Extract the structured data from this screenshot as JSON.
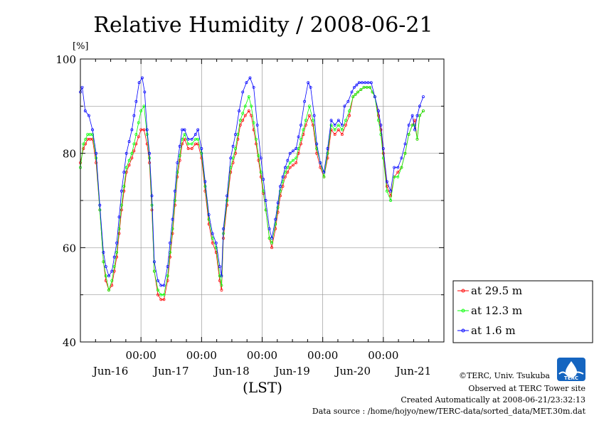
{
  "chart_data": {
    "type": "line",
    "title": "Relative Humidity / 2008-06-21",
    "y_unit": "[%]",
    "xlabel": "(LST)",
    "ylim": [
      40,
      100
    ],
    "y_ticks": [
      40,
      60,
      80,
      100
    ],
    "x_range": [
      0,
      6
    ],
    "x_time_ticks": [
      {
        "x": 1,
        "label": "00:00"
      },
      {
        "x": 2,
        "label": "00:00"
      },
      {
        "x": 3,
        "label": "00:00"
      },
      {
        "x": 4,
        "label": "00:00"
      },
      {
        "x": 5,
        "label": "00:00"
      }
    ],
    "x_day_labels": [
      {
        "x": 0.5,
        "label": "Jun-16"
      },
      {
        "x": 1.5,
        "label": "Jun-17"
      },
      {
        "x": 2.5,
        "label": "Jun-18"
      },
      {
        "x": 3.5,
        "label": "Jun-19"
      },
      {
        "x": 4.5,
        "label": "Jun-20"
      },
      {
        "x": 5.5,
        "label": "Jun-21"
      }
    ],
    "grid": true,
    "legend_position": "right-bottom",
    "series": [
      {
        "name": "at 29.5 m",
        "color": "#ff0000",
        "points": [
          [
            0,
            78
          ],
          [
            0.05,
            81
          ],
          [
            0.12,
            83
          ],
          [
            0.2,
            83
          ],
          [
            0.26,
            78
          ],
          [
            0.32,
            68
          ],
          [
            0.38,
            57
          ],
          [
            0.42,
            53
          ],
          [
            0.47,
            51
          ],
          [
            0.52,
            52
          ],
          [
            0.6,
            58
          ],
          [
            0.68,
            68
          ],
          [
            0.76,
            76
          ],
          [
            0.85,
            79
          ],
          [
            0.92,
            82
          ],
          [
            1.0,
            85
          ],
          [
            1.05,
            85
          ],
          [
            1.1,
            82
          ],
          [
            1.14,
            78
          ],
          [
            1.18,
            68
          ],
          [
            1.22,
            55
          ],
          [
            1.28,
            50
          ],
          [
            1.33,
            49
          ],
          [
            1.38,
            49
          ],
          [
            1.44,
            53
          ],
          [
            1.52,
            63
          ],
          [
            1.6,
            75
          ],
          [
            1.68,
            82
          ],
          [
            1.72,
            83
          ],
          [
            1.78,
            81
          ],
          [
            1.84,
            81
          ],
          [
            1.9,
            82
          ],
          [
            1.94,
            82
          ],
          [
            2.0,
            79
          ],
          [
            2.06,
            72
          ],
          [
            2.12,
            65
          ],
          [
            2.18,
            61
          ],
          [
            2.24,
            59
          ],
          [
            2.3,
            53
          ],
          [
            2.33,
            51
          ],
          [
            2.36,
            62
          ],
          [
            2.42,
            69
          ],
          [
            2.48,
            76
          ],
          [
            2.56,
            80
          ],
          [
            2.64,
            86
          ],
          [
            2.72,
            88
          ],
          [
            2.78,
            89
          ],
          [
            2.82,
            88
          ],
          [
            2.9,
            82
          ],
          [
            2.98,
            75
          ],
          [
            3.06,
            68
          ],
          [
            3.12,
            62
          ],
          [
            3.16,
            60
          ],
          [
            3.22,
            64
          ],
          [
            3.3,
            71
          ],
          [
            3.38,
            75
          ],
          [
            3.46,
            77
          ],
          [
            3.56,
            78
          ],
          [
            3.64,
            82
          ],
          [
            3.72,
            86
          ],
          [
            3.78,
            88
          ],
          [
            3.84,
            86
          ],
          [
            3.9,
            80
          ],
          [
            3.96,
            77
          ],
          [
            4.02,
            75
          ],
          [
            4.08,
            79
          ],
          [
            4.14,
            85
          ],
          [
            4.2,
            84
          ],
          [
            4.26,
            85
          ],
          [
            4.32,
            84
          ],
          [
            4.38,
            86
          ],
          [
            4.44,
            88
          ],
          [
            4.5,
            92
          ],
          [
            4.58,
            93
          ],
          [
            4.68,
            94
          ],
          [
            4.78,
            94
          ],
          [
            4.86,
            92
          ],
          [
            4.92,
            88
          ],
          [
            4.96,
            85
          ],
          [
            5.0,
            80
          ],
          [
            5.06,
            73
          ],
          [
            5.12,
            71
          ],
          [
            5.18,
            75
          ],
          [
            5.24,
            76
          ],
          [
            5.3,
            77
          ],
          [
            5.36,
            80
          ],
          [
            5.42,
            84
          ],
          [
            5.48,
            86
          ],
          [
            5.52,
            87
          ],
          [
            5.56,
            83
          ],
          [
            5.6,
            88
          ],
          [
            5.66,
            89
          ]
        ]
      },
      {
        "name": "at 12.3 m",
        "color": "#00ff00",
        "points": [
          [
            0,
            77
          ],
          [
            0.05,
            82
          ],
          [
            0.12,
            84
          ],
          [
            0.2,
            84
          ],
          [
            0.26,
            79
          ],
          [
            0.32,
            68
          ],
          [
            0.38,
            57
          ],
          [
            0.42,
            54
          ],
          [
            0.47,
            51
          ],
          [
            0.52,
            53
          ],
          [
            0.6,
            59
          ],
          [
            0.68,
            69
          ],
          [
            0.76,
            77
          ],
          [
            0.85,
            80
          ],
          [
            0.92,
            84
          ],
          [
            1.0,
            89
          ],
          [
            1.05,
            90
          ],
          [
            1.1,
            84
          ],
          [
            1.14,
            79
          ],
          [
            1.18,
            69
          ],
          [
            1.22,
            55
          ],
          [
            1.28,
            51
          ],
          [
            1.33,
            50
          ],
          [
            1.38,
            50
          ],
          [
            1.44,
            54
          ],
          [
            1.52,
            64
          ],
          [
            1.6,
            76
          ],
          [
            1.68,
            83
          ],
          [
            1.72,
            84
          ],
          [
            1.78,
            82
          ],
          [
            1.84,
            82
          ],
          [
            1.9,
            83
          ],
          [
            1.94,
            83
          ],
          [
            2.0,
            80
          ],
          [
            2.06,
            73
          ],
          [
            2.12,
            66
          ],
          [
            2.18,
            62
          ],
          [
            2.24,
            60
          ],
          [
            2.3,
            54
          ],
          [
            2.33,
            52
          ],
          [
            2.36,
            63
          ],
          [
            2.42,
            70
          ],
          [
            2.48,
            77
          ],
          [
            2.56,
            81
          ],
          [
            2.64,
            87
          ],
          [
            2.72,
            90
          ],
          [
            2.78,
            92
          ],
          [
            2.82,
            90
          ],
          [
            2.9,
            83
          ],
          [
            2.98,
            76
          ],
          [
            3.06,
            68
          ],
          [
            3.12,
            62
          ],
          [
            3.16,
            61
          ],
          [
            3.22,
            65
          ],
          [
            3.3,
            72
          ],
          [
            3.38,
            76
          ],
          [
            3.46,
            78
          ],
          [
            3.56,
            79
          ],
          [
            3.64,
            83
          ],
          [
            3.72,
            87
          ],
          [
            3.78,
            90
          ],
          [
            3.84,
            87
          ],
          [
            3.9,
            81
          ],
          [
            3.96,
            78
          ],
          [
            4.02,
            75
          ],
          [
            4.08,
            80
          ],
          [
            4.14,
            86
          ],
          [
            4.2,
            85
          ],
          [
            4.26,
            86
          ],
          [
            4.32,
            85
          ],
          [
            4.38,
            87
          ],
          [
            4.44,
            89
          ],
          [
            4.5,
            92
          ],
          [
            4.58,
            93
          ],
          [
            4.68,
            94
          ],
          [
            4.78,
            94
          ],
          [
            4.86,
            92
          ],
          [
            4.92,
            87
          ],
          [
            4.96,
            84
          ],
          [
            5.0,
            79
          ],
          [
            5.06,
            72
          ],
          [
            5.12,
            70
          ],
          [
            5.18,
            75
          ],
          [
            5.24,
            75
          ],
          [
            5.3,
            77
          ],
          [
            5.36,
            80
          ],
          [
            5.42,
            84
          ],
          [
            5.48,
            86
          ],
          [
            5.52,
            86
          ],
          [
            5.56,
            83
          ],
          [
            5.6,
            88
          ],
          [
            5.66,
            89
          ]
        ]
      },
      {
        "name": "at 1.6 m",
        "color": "#0000ff",
        "points": [
          [
            0,
            93
          ],
          [
            0.03,
            94
          ],
          [
            0.08,
            89
          ],
          [
            0.14,
            88
          ],
          [
            0.2,
            85
          ],
          [
            0.26,
            80
          ],
          [
            0.32,
            69
          ],
          [
            0.38,
            59
          ],
          [
            0.42,
            56
          ],
          [
            0.47,
            54
          ],
          [
            0.52,
            55
          ],
          [
            0.6,
            61
          ],
          [
            0.68,
            72
          ],
          [
            0.76,
            80
          ],
          [
            0.85,
            85
          ],
          [
            0.92,
            91
          ],
          [
            0.97,
            95
          ],
          [
            1.02,
            96
          ],
          [
            1.06,
            93
          ],
          [
            1.1,
            85
          ],
          [
            1.14,
            80
          ],
          [
            1.18,
            71
          ],
          [
            1.22,
            57
          ],
          [
            1.28,
            53
          ],
          [
            1.33,
            52
          ],
          [
            1.38,
            52
          ],
          [
            1.44,
            56
          ],
          [
            1.52,
            66
          ],
          [
            1.6,
            78
          ],
          [
            1.68,
            85
          ],
          [
            1.72,
            85
          ],
          [
            1.78,
            83
          ],
          [
            1.84,
            83
          ],
          [
            1.9,
            84
          ],
          [
            1.94,
            85
          ],
          [
            2.0,
            81
          ],
          [
            2.06,
            74
          ],
          [
            2.12,
            67
          ],
          [
            2.18,
            63
          ],
          [
            2.24,
            61
          ],
          [
            2.3,
            56
          ],
          [
            2.33,
            54
          ],
          [
            2.36,
            64
          ],
          [
            2.42,
            71
          ],
          [
            2.48,
            79
          ],
          [
            2.56,
            84
          ],
          [
            2.62,
            89
          ],
          [
            2.68,
            93
          ],
          [
            2.74,
            95
          ],
          [
            2.8,
            96
          ],
          [
            2.86,
            94
          ],
          [
            2.92,
            86
          ],
          [
            2.98,
            79
          ],
          [
            3.06,
            70
          ],
          [
            3.12,
            64
          ],
          [
            3.16,
            62
          ],
          [
            3.22,
            66
          ],
          [
            3.3,
            73
          ],
          [
            3.38,
            77
          ],
          [
            3.46,
            80
          ],
          [
            3.56,
            81
          ],
          [
            3.64,
            86
          ],
          [
            3.7,
            91
          ],
          [
            3.76,
            95
          ],
          [
            3.8,
            94
          ],
          [
            3.86,
            88
          ],
          [
            3.9,
            82
          ],
          [
            3.96,
            78
          ],
          [
            4.02,
            76
          ],
          [
            4.08,
            81
          ],
          [
            4.14,
            87
          ],
          [
            4.2,
            86
          ],
          [
            4.26,
            87
          ],
          [
            4.32,
            86
          ],
          [
            4.36,
            90
          ],
          [
            4.42,
            91
          ],
          [
            4.48,
            93
          ],
          [
            4.52,
            94
          ],
          [
            4.6,
            95
          ],
          [
            4.7,
            95
          ],
          [
            4.8,
            95
          ],
          [
            4.86,
            92
          ],
          [
            4.92,
            89
          ],
          [
            4.96,
            86
          ],
          [
            5.0,
            81
          ],
          [
            5.06,
            74
          ],
          [
            5.12,
            72
          ],
          [
            5.18,
            77
          ],
          [
            5.24,
            77
          ],
          [
            5.3,
            79
          ],
          [
            5.36,
            82
          ],
          [
            5.42,
            86
          ],
          [
            5.48,
            88
          ],
          [
            5.52,
            85
          ],
          [
            5.56,
            88
          ],
          [
            5.6,
            90
          ],
          [
            5.66,
            92
          ]
        ]
      }
    ]
  },
  "credits": {
    "copyright": "©TERC, Univ. Tsukuba",
    "observed": "Observed at TERC Tower site",
    "created": "Created Automatically at 2008-06-21/23:32:13",
    "source": "Data source : /home/hojyo/new/TERC-data/sorted_data/MET.30m.dat"
  },
  "logo": {
    "text": "TERC",
    "color": "#1565c0"
  }
}
